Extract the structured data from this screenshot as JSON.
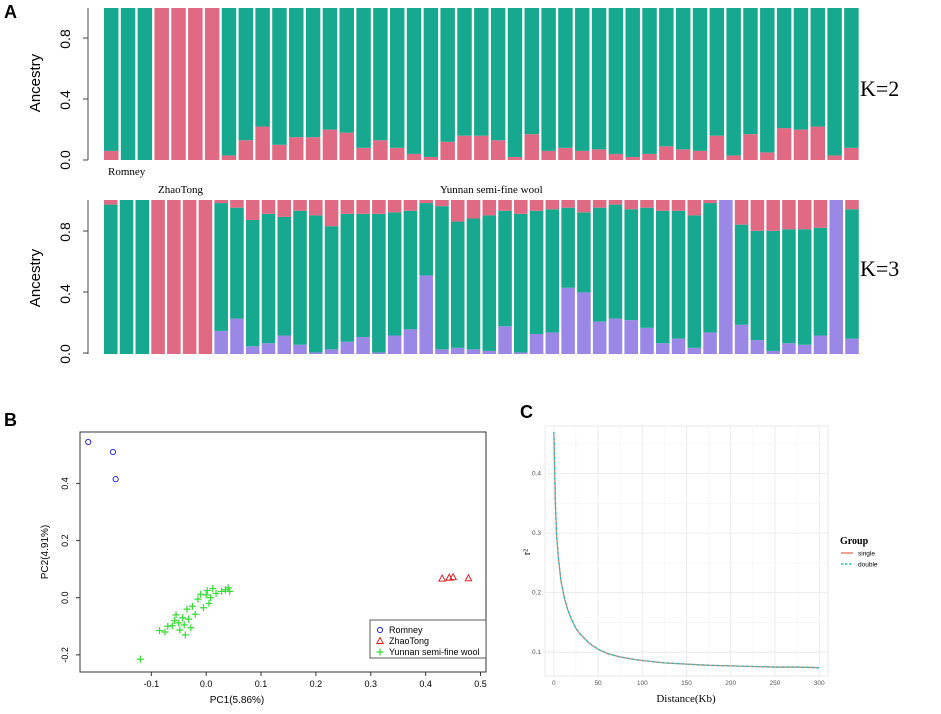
{
  "panels": {
    "a": "A",
    "b": "B",
    "c": "C"
  },
  "colors": {
    "teal": "#17a98f",
    "pink": "#e06a83",
    "purple": "#9b88e6",
    "pc_romney": "#2b2bd9",
    "pc_zhaotong": "#e02020",
    "pc_yunnan": "#33dd33",
    "ld_single": "#e8806f",
    "ld_double": "#2bbfb2"
  },
  "chart_data": [
    {
      "type": "bar",
      "stacked": true,
      "title": "",
      "k_label": "K=2",
      "ylabel": "Ancestry",
      "ylim": [
        0,
        1
      ],
      "yticks": [
        "0.0",
        "0.4",
        "0.8"
      ],
      "group_labels": [
        "Romney",
        "ZhaoTong",
        "Yunnan semi-fine wool"
      ],
      "series": [
        {
          "name": "pink",
          "values": [
            0.06,
            0,
            0,
            1,
            1,
            1,
            1,
            0.03,
            0.13,
            0.22,
            0.1,
            0.15,
            0.15,
            0.2,
            0.18,
            0.08,
            0.13,
            0.08,
            0.04,
            0.02,
            0.12,
            0.16,
            0.16,
            0.13,
            0.02,
            0.17,
            0.06,
            0.08,
            0.06,
            0.07,
            0.04,
            0.02,
            0.04,
            0.09,
            0.07,
            0.06,
            0.16,
            0.03,
            0.17,
            0.05,
            0.21,
            0.2,
            0.22,
            0.03,
            0.08
          ]
        },
        {
          "name": "teal",
          "values": [
            0.94,
            1,
            1,
            0,
            0,
            0,
            0,
            0.97,
            0.87,
            0.78,
            0.9,
            0.85,
            0.85,
            0.8,
            0.82,
            0.92,
            0.87,
            0.92,
            0.96,
            0.98,
            0.88,
            0.84,
            0.84,
            0.87,
            0.98,
            0.83,
            0.94,
            0.92,
            0.94,
            0.93,
            0.96,
            0.98,
            0.96,
            0.91,
            0.93,
            0.94,
            0.84,
            0.97,
            0.83,
            0.95,
            0.79,
            0.8,
            0.78,
            0.97,
            0.92
          ]
        }
      ]
    },
    {
      "type": "bar",
      "stacked": true,
      "title": "",
      "k_label": "K=3",
      "ylabel": "Ancestry",
      "ylim": [
        0,
        1
      ],
      "yticks": [
        "0.0",
        "0.4",
        "0.8"
      ],
      "series": [
        {
          "name": "purple",
          "values": [
            0,
            0,
            0,
            0,
            0,
            0,
            0,
            0.15,
            0.23,
            0.05,
            0.07,
            0.12,
            0.06,
            0.01,
            0.03,
            0.08,
            0.11,
            0.01,
            0.12,
            0.16,
            0.51,
            0.03,
            0.04,
            0.03,
            0.02,
            0.18,
            0.01,
            0.13,
            0.14,
            0.43,
            0.4,
            0.21,
            0.23,
            0.22,
            0.17,
            0.07,
            0.1,
            0.04,
            0.14,
            1,
            0.19,
            0.09,
            0.02,
            0.07,
            0.06,
            0.12,
            1,
            0.1
          ]
        },
        {
          "name": "teal",
          "values": [
            0.97,
            1,
            1,
            0,
            0,
            0,
            0,
            0.83,
            0.72,
            0.82,
            0.84,
            0.77,
            0.87,
            0.89,
            0.8,
            0.83,
            0.8,
            0.9,
            0.8,
            0.77,
            0.47,
            0.93,
            0.82,
            0.85,
            0.88,
            0.75,
            0.9,
            0.8,
            0.8,
            0.52,
            0.52,
            0.74,
            0.74,
            0.72,
            0.78,
            0.86,
            0.83,
            0.86,
            0.84,
            0,
            0.65,
            0.71,
            0.78,
            0.74,
            0.75,
            0.7,
            0,
            0.84
          ]
        },
        {
          "name": "pink",
          "values": [
            0.03,
            0,
            0,
            1,
            1,
            1,
            1,
            0.02,
            0.05,
            0.13,
            0.09,
            0.11,
            0.07,
            0.1,
            0.17,
            0.09,
            0.09,
            0.09,
            0.08,
            0.07,
            0.02,
            0.04,
            0.14,
            0.12,
            0.1,
            0.07,
            0.09,
            0.07,
            0.06,
            0.05,
            0.08,
            0.05,
            0.03,
            0.06,
            0.05,
            0.07,
            0.07,
            0.1,
            0.02,
            0,
            0.16,
            0.2,
            0.2,
            0.19,
            0.19,
            0.18,
            0,
            0.06
          ]
        }
      ]
    },
    {
      "type": "scatter",
      "title": "",
      "xlabel": "PC1(5.86%)",
      "ylabel": "PC2(4.91%)",
      "xlim": [
        -0.23,
        0.51
      ],
      "ylim": [
        -0.26,
        0.58
      ],
      "xticks": [
        "-0.1",
        "0.0",
        "0.1",
        "0.2",
        "0.3",
        "0.4",
        "0.5"
      ],
      "yticks": [
        "-0.2",
        "0.0",
        "0.2",
        "0.4"
      ],
      "legend_position": "bottom-right",
      "series": [
        {
          "name": "Romney",
          "marker": "circle",
          "points": [
            [
              -0.215,
              0.545
            ],
            [
              -0.17,
              0.51
            ],
            [
              -0.165,
              0.415
            ]
          ]
        },
        {
          "name": "ZhaoTong",
          "marker": "triangle",
          "points": [
            [
              0.43,
              0.067
            ],
            [
              0.443,
              0.07
            ],
            [
              0.45,
              0.072
            ],
            [
              0.478,
              0.068
            ]
          ]
        },
        {
          "name": "Yunnan semi-fine wool",
          "marker": "plus",
          "points": [
            [
              -0.12,
              -0.215
            ],
            [
              -0.085,
              -0.115
            ],
            [
              -0.075,
              -0.12
            ],
            [
              -0.07,
              -0.1
            ],
            [
              -0.062,
              -0.098
            ],
            [
              -0.058,
              -0.08
            ],
            [
              -0.055,
              -0.06
            ],
            [
              -0.05,
              -0.088
            ],
            [
              -0.048,
              -0.113
            ],
            [
              -0.043,
              -0.07
            ],
            [
              -0.04,
              -0.095
            ],
            [
              -0.038,
              -0.13
            ],
            [
              -0.035,
              -0.04
            ],
            [
              -0.032,
              -0.075
            ],
            [
              -0.028,
              -0.105
            ],
            [
              -0.025,
              -0.03
            ],
            [
              -0.02,
              -0.058
            ],
            [
              -0.015,
              -0.005
            ],
            [
              -0.01,
              0.012
            ],
            [
              -0.005,
              -0.035
            ],
            [
              0.0,
              0.01
            ],
            [
              0.002,
              0.025
            ],
            [
              0.008,
              0.0
            ],
            [
              0.012,
              0.032
            ],
            [
              0.018,
              0.015
            ],
            [
              0.028,
              0.022
            ],
            [
              0.035,
              0.028
            ],
            [
              0.04,
              0.035
            ],
            [
              0.043,
              0.022
            ],
            [
              0.005,
              -0.02
            ]
          ]
        }
      ]
    },
    {
      "type": "line",
      "title": "",
      "xlabel": "Distance(Kb)",
      "ylabel": "r²",
      "ylabel_shown": "r²",
      "xlim": [
        -10,
        310
      ],
      "ylim": [
        0.06,
        0.48
      ],
      "xticks": [
        "0",
        "50",
        "100",
        "150",
        "200",
        "250",
        "300"
      ],
      "yticks": [
        "0.1",
        "0.2",
        "0.3",
        "0.4"
      ],
      "legend_title": "Group",
      "series": [
        {
          "name": "single",
          "x": [
            0,
            1,
            2,
            3,
            5,
            8,
            12,
            16,
            20,
            25,
            30,
            40,
            50,
            60,
            75,
            90,
            100,
            125,
            150,
            175,
            200,
            225,
            250,
            275,
            300
          ],
          "values": [
            0.47,
            0.4,
            0.34,
            0.3,
            0.26,
            0.22,
            0.19,
            0.17,
            0.155,
            0.14,
            0.13,
            0.115,
            0.105,
            0.098,
            0.092,
            0.088,
            0.086,
            0.082,
            0.08,
            0.078,
            0.077,
            0.076,
            0.075,
            0.075,
            0.074
          ]
        },
        {
          "name": "double",
          "x": [
            0,
            1,
            2,
            3,
            5,
            8,
            12,
            16,
            20,
            25,
            30,
            40,
            50,
            60,
            75,
            90,
            100,
            125,
            150,
            175,
            200,
            225,
            250,
            275,
            300
          ],
          "values": [
            0.47,
            0.4,
            0.34,
            0.3,
            0.26,
            0.22,
            0.19,
            0.17,
            0.155,
            0.14,
            0.13,
            0.115,
            0.105,
            0.098,
            0.092,
            0.088,
            0.086,
            0.082,
            0.08,
            0.078,
            0.077,
            0.076,
            0.075,
            0.075,
            0.074
          ]
        }
      ]
    }
  ]
}
